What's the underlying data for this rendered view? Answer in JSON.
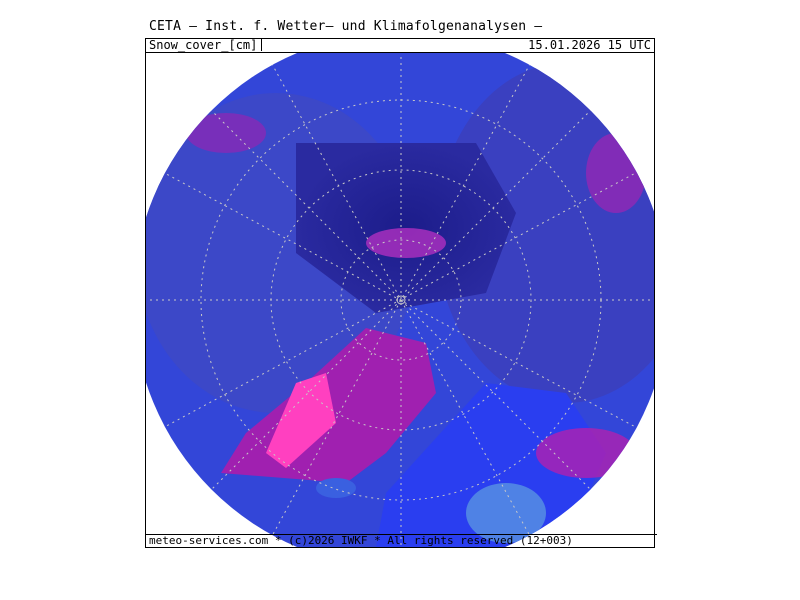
{
  "header": {
    "title": "CETA – Inst. f. Wetter– und Klimafolgenanalysen –",
    "variable": "Snow_cover_[cm]",
    "datetime": "15.01.2026 15 UTC"
  },
  "footer": {
    "credit": "meteo-services.com * (c)2026 IWKF * All rights reserved (12+003)"
  },
  "map": {
    "projection": "polar-stereographic-north",
    "colors": {
      "background": "#ffffff",
      "ocean_ice": "#2a3ef0",
      "snow_low": "#3a5ee8",
      "snow_mid": "#2e2ea8",
      "snow_high": "#1c1c8a",
      "snow_very_high": "#b020b0",
      "snow_extreme": "#ff40c0",
      "shallow": "#60c0e0",
      "grid": "#c8c8c8"
    }
  }
}
